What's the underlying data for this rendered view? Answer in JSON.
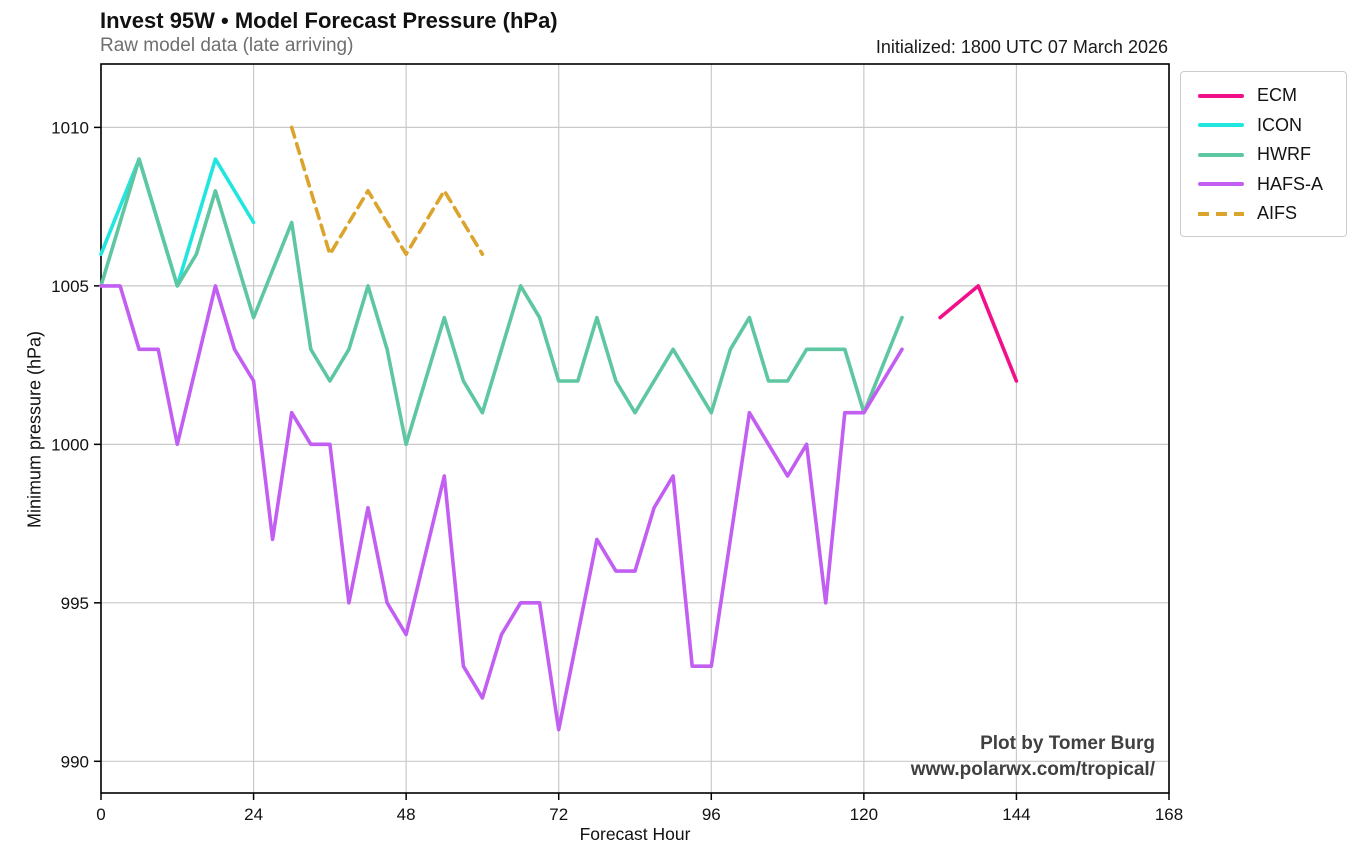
{
  "header": {
    "title": "Invest 95W • Model Forecast Pressure (hPa)",
    "subtitle": "Raw model data (late arriving)",
    "initialized": "Initialized: 1800 UTC 07 March 2026"
  },
  "watermark": {
    "line1": "Plot by Tomer Burg",
    "line2": "www.polarwx.com/tropical/"
  },
  "colors": {
    "grid": "#c9c9c9",
    "frame": "#000000",
    "ecm": "#f2108a",
    "icon": "#21e6e0",
    "hwrf": "#5ec7a1",
    "hafs_a": "#c25ff2",
    "aifs": "#dba42c"
  },
  "chart_data": {
    "type": "line",
    "title": "Invest 95W • Model Forecast Pressure (hPa)",
    "subtitle": "Raw model data (late arriving)",
    "xlabel": "Forecast Hour",
    "ylabel": "Minimum pressure (hPa)",
    "xlim": [
      0,
      168
    ],
    "ylim": [
      989,
      1012
    ],
    "xticks": [
      0,
      24,
      48,
      72,
      96,
      120,
      144,
      168
    ],
    "yticks": [
      990,
      995,
      1000,
      1005,
      1010
    ],
    "grid": true,
    "legend_position": "outside-top-right",
    "series": [
      {
        "name": "ECM",
        "color": "#f2108a",
        "style": "solid",
        "points": [
          [
            132,
            1004
          ],
          [
            138,
            1005
          ],
          [
            144,
            1002
          ]
        ]
      },
      {
        "name": "ICON",
        "color": "#21e6e0",
        "style": "solid",
        "points": [
          [
            0,
            1006
          ],
          [
            6,
            1009
          ],
          [
            12,
            1005
          ],
          [
            18,
            1009
          ],
          [
            24,
            1007
          ]
        ]
      },
      {
        "name": "HWRF",
        "color": "#5ec7a1",
        "style": "solid",
        "points": [
          [
            0,
            1005
          ],
          [
            6,
            1009
          ],
          [
            12,
            1005
          ],
          [
            15,
            1006
          ],
          [
            18,
            1008
          ],
          [
            24,
            1004
          ],
          [
            30,
            1007
          ],
          [
            33,
            1003
          ],
          [
            36,
            1002
          ],
          [
            39,
            1003
          ],
          [
            42,
            1005
          ],
          [
            45,
            1003
          ],
          [
            48,
            1000
          ],
          [
            51,
            1002
          ],
          [
            54,
            1004
          ],
          [
            57,
            1002
          ],
          [
            60,
            1001
          ],
          [
            63,
            1003
          ],
          [
            66,
            1005
          ],
          [
            69,
            1004
          ],
          [
            72,
            1002
          ],
          [
            75,
            1002
          ],
          [
            78,
            1004
          ],
          [
            81,
            1002
          ],
          [
            84,
            1001
          ],
          [
            87,
            1002
          ],
          [
            90,
            1003
          ],
          [
            93,
            1002
          ],
          [
            96,
            1001
          ],
          [
            99,
            1003
          ],
          [
            102,
            1004
          ],
          [
            105,
            1002
          ],
          [
            108,
            1002
          ],
          [
            111,
            1003
          ],
          [
            114,
            1003
          ],
          [
            117,
            1003
          ],
          [
            120,
            1001
          ],
          [
            126,
            1004
          ]
        ]
      },
      {
        "name": "HAFS-A",
        "color": "#c25ff2",
        "style": "solid",
        "points": [
          [
            0,
            1005
          ],
          [
            3,
            1005
          ],
          [
            6,
            1003
          ],
          [
            9,
            1003
          ],
          [
            12,
            1000
          ],
          [
            18,
            1005
          ],
          [
            21,
            1003
          ],
          [
            24,
            1002
          ],
          [
            27,
            997
          ],
          [
            30,
            1001
          ],
          [
            33,
            1000
          ],
          [
            36,
            1000
          ],
          [
            39,
            995
          ],
          [
            42,
            998
          ],
          [
            45,
            995
          ],
          [
            48,
            994
          ],
          [
            54,
            999
          ],
          [
            57,
            993
          ],
          [
            60,
            992
          ],
          [
            63,
            994
          ],
          [
            66,
            995
          ],
          [
            69,
            995
          ],
          [
            72,
            991
          ],
          [
            78,
            997
          ],
          [
            81,
            996
          ],
          [
            84,
            996
          ],
          [
            87,
            998
          ],
          [
            90,
            999
          ],
          [
            93,
            993
          ],
          [
            96,
            993
          ],
          [
            102,
            1001
          ],
          [
            108,
            999
          ],
          [
            111,
            1000
          ],
          [
            114,
            995
          ],
          [
            117,
            1001
          ],
          [
            120,
            1001
          ],
          [
            126,
            1003
          ]
        ]
      },
      {
        "name": "AIFS",
        "color": "#dba42c",
        "style": "dashed",
        "points": [
          [
            30,
            1010
          ],
          [
            36,
            1006
          ],
          [
            42,
            1008
          ],
          [
            48,
            1006
          ],
          [
            54,
            1008
          ],
          [
            60,
            1006
          ]
        ]
      }
    ]
  }
}
